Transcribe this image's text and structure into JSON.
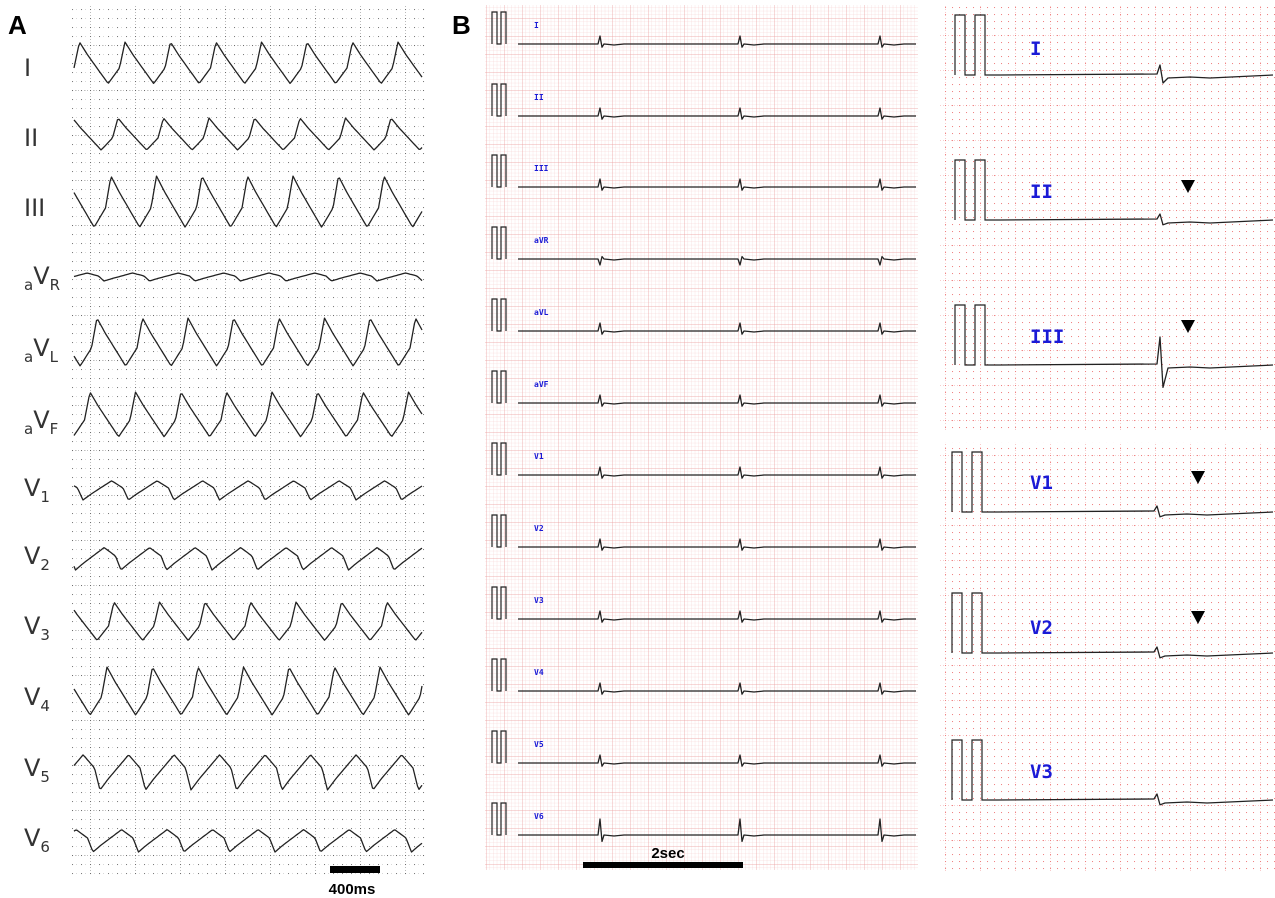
{
  "panel_a": {
    "label": "A",
    "leads": [
      {
        "main": "I"
      },
      {
        "main": "II"
      },
      {
        "main": "III"
      },
      {
        "pre": "a",
        "main": "V",
        "sub": "R"
      },
      {
        "pre": "a",
        "main": "V",
        "sub": "L"
      },
      {
        "pre": "a",
        "main": "V",
        "sub": "F"
      },
      {
        "main": "V",
        "sub": "1"
      },
      {
        "main": "V",
        "sub": "2"
      },
      {
        "main": "V",
        "sub": "3"
      },
      {
        "main": "V",
        "sub": "4"
      },
      {
        "main": "V",
        "sub": "5"
      },
      {
        "main": "V",
        "sub": "6"
      }
    ],
    "scale_bar": "400ms"
  },
  "panel_b": {
    "label": "B",
    "leads": [
      "I",
      "II",
      "III",
      "aVR",
      "aVL",
      "aVF",
      "V1",
      "V2",
      "V3",
      "V4",
      "V5",
      "V6"
    ],
    "scale_bar": "2sec",
    "zoom_top_leads": [
      "I",
      "II",
      "III"
    ],
    "zoom_bottom_leads": [
      "V1",
      "V2",
      "V3"
    ]
  }
}
